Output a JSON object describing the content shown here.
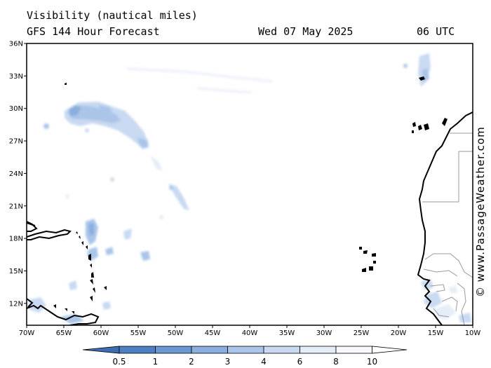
{
  "header": {
    "title": "Visibility (nautical miles)",
    "subtitle": "GFS 144 Hour Forecast",
    "date": "Wed 07 May 2025",
    "time": "06 UTC"
  },
  "map": {
    "lat_ticks": [
      "36N",
      "33N",
      "30N",
      "27N",
      "24N",
      "21N",
      "18N",
      "15N",
      "12N"
    ],
    "lon_ticks": [
      "70W",
      "65W",
      "60W",
      "55W",
      "50W",
      "45W",
      "40W",
      "35W",
      "30W",
      "25W",
      "20W",
      "15W",
      "10W"
    ],
    "credit": "© www.PassageWeather.com",
    "colors": {
      "land_outline": "#000000",
      "border": "#9a9a9a",
      "frame": "#000000"
    }
  },
  "colorbar": {
    "labels": [
      "0.5",
      "1",
      "2",
      "3",
      "4",
      "6",
      "8",
      "10"
    ],
    "colors": [
      "#3d6eb4",
      "#4f80c4",
      "#6b97d2",
      "#8aaedd",
      "#aac5e8",
      "#c8d9f1",
      "#e4edf8",
      "#f7f9fd",
      "#ffffff"
    ]
  }
}
